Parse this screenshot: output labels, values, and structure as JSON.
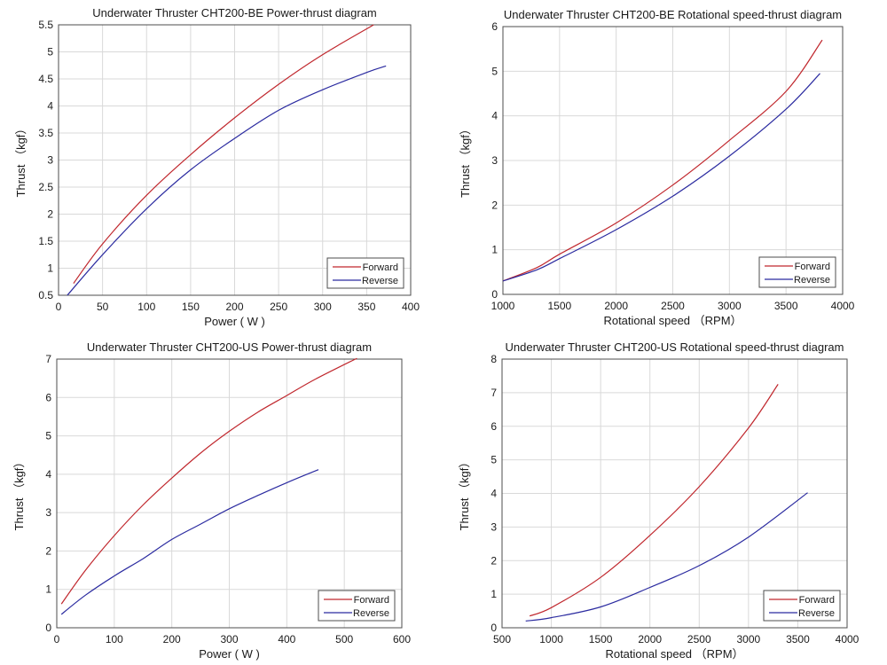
{
  "colors": {
    "forward": "#c0272d",
    "reverse": "#2b2ba0"
  },
  "chart_data": [
    {
      "type": "line",
      "title": "Underwater Thruster CHT200-BE Power-thrust diagram",
      "xlabel": "Power ( W )",
      "ylabel": "Thrust （kgf）",
      "xlim": [
        0,
        400
      ],
      "ylim": [
        0.5,
        5.5
      ],
      "xticks": [
        0,
        50,
        100,
        150,
        200,
        250,
        300,
        350,
        400
      ],
      "yticks": [
        0.5,
        1,
        1.5,
        2,
        2.5,
        3,
        3.5,
        4,
        4.5,
        5,
        5.5
      ],
      "grid": true,
      "legend_position": "bottom-right",
      "series": [
        {
          "name": "Forward",
          "color": "#c0272d",
          "points": [
            [
              17,
              0.72
            ],
            [
              50,
              1.45
            ],
            [
              100,
              2.35
            ],
            [
              150,
              3.1
            ],
            [
              200,
              3.78
            ],
            [
              250,
              4.4
            ],
            [
              300,
              4.95
            ],
            [
              358,
              5.5
            ]
          ]
        },
        {
          "name": "Reverse",
          "color": "#2b2ba0",
          "points": [
            [
              10,
              0.5
            ],
            [
              50,
              1.25
            ],
            [
              100,
              2.1
            ],
            [
              150,
              2.82
            ],
            [
              200,
              3.4
            ],
            [
              250,
              3.92
            ],
            [
              300,
              4.3
            ],
            [
              350,
              4.62
            ],
            [
              372,
              4.74
            ]
          ]
        }
      ]
    },
    {
      "type": "line",
      "title": "Underwater Thruster CHT200-BE Rotational speed-thrust diagram",
      "xlabel": "Rotational speed （RPM）",
      "ylabel": "Thrust （kgf）",
      "xlim": [
        1000,
        4000
      ],
      "ylim": [
        0,
        6
      ],
      "xticks": [
        1000,
        1500,
        2000,
        2500,
        3000,
        3500,
        4000
      ],
      "yticks": [
        0,
        1,
        2,
        3,
        4,
        5,
        6
      ],
      "grid": true,
      "legend_position": "bottom-right",
      "series": [
        {
          "name": "Forward",
          "color": "#c0272d",
          "points": [
            [
              1000,
              0.3
            ],
            [
              1300,
              0.6
            ],
            [
              1500,
              0.9
            ],
            [
              2000,
              1.6
            ],
            [
              2500,
              2.45
            ],
            [
              3000,
              3.45
            ],
            [
              3500,
              4.55
            ],
            [
              3820,
              5.7
            ]
          ]
        },
        {
          "name": "Reverse",
          "color": "#2b2ba0",
          "points": [
            [
              1000,
              0.3
            ],
            [
              1300,
              0.55
            ],
            [
              1500,
              0.8
            ],
            [
              2000,
              1.45
            ],
            [
              2500,
              2.2
            ],
            [
              3000,
              3.1
            ],
            [
              3500,
              4.15
            ],
            [
              3800,
              4.95
            ]
          ]
        }
      ]
    },
    {
      "type": "line",
      "title": "Underwater Thruster CHT200-US Power-thrust diagram",
      "xlabel": "Power ( W )",
      "ylabel": "Thrust （kgf）",
      "xlim": [
        0,
        600
      ],
      "ylim": [
        0,
        7
      ],
      "xticks": [
        0,
        100,
        200,
        300,
        400,
        500,
        600
      ],
      "yticks": [
        0,
        1,
        2,
        3,
        4,
        5,
        6,
        7
      ],
      "grid": true,
      "legend_position": "bottom-right",
      "series": [
        {
          "name": "Forward",
          "color": "#c0272d",
          "points": [
            [
              8,
              0.62
            ],
            [
              50,
              1.5
            ],
            [
              100,
              2.4
            ],
            [
              150,
              3.2
            ],
            [
              200,
              3.9
            ],
            [
              250,
              4.55
            ],
            [
              300,
              5.12
            ],
            [
              350,
              5.62
            ],
            [
              400,
              6.05
            ],
            [
              450,
              6.48
            ],
            [
              522,
              7.02
            ]
          ]
        },
        {
          "name": "Reverse",
          "color": "#2b2ba0",
          "points": [
            [
              8,
              0.35
            ],
            [
              50,
              0.85
            ],
            [
              100,
              1.35
            ],
            [
              150,
              1.8
            ],
            [
              200,
              2.3
            ],
            [
              250,
              2.7
            ],
            [
              300,
              3.1
            ],
            [
              350,
              3.45
            ],
            [
              400,
              3.78
            ],
            [
              455,
              4.12
            ]
          ]
        }
      ]
    },
    {
      "type": "line",
      "title": "Underwater Thruster CHT200-US Rotational speed-thrust diagram",
      "xlabel": "Rotational speed （RPM）",
      "ylabel": "Thrust （kgf）",
      "xlim": [
        500,
        4000
      ],
      "ylim": [
        0,
        8
      ],
      "xticks": [
        500,
        1000,
        1500,
        2000,
        2500,
        3000,
        3500,
        4000
      ],
      "yticks": [
        0,
        1,
        2,
        3,
        4,
        5,
        6,
        7,
        8
      ],
      "grid": true,
      "legend_position": "bottom-right",
      "series": [
        {
          "name": "Forward",
          "color": "#c0272d",
          "points": [
            [
              780,
              0.35
            ],
            [
              1000,
              0.6
            ],
            [
              1500,
              1.5
            ],
            [
              2000,
              2.75
            ],
            [
              2500,
              4.2
            ],
            [
              3000,
              5.95
            ],
            [
              3300,
              7.25
            ]
          ]
        },
        {
          "name": "Reverse",
          "color": "#2b2ba0",
          "points": [
            [
              740,
              0.2
            ],
            [
              1000,
              0.3
            ],
            [
              1500,
              0.62
            ],
            [
              2000,
              1.2
            ],
            [
              2500,
              1.85
            ],
            [
              3000,
              2.7
            ],
            [
              3600,
              4.02
            ]
          ]
        }
      ]
    }
  ]
}
